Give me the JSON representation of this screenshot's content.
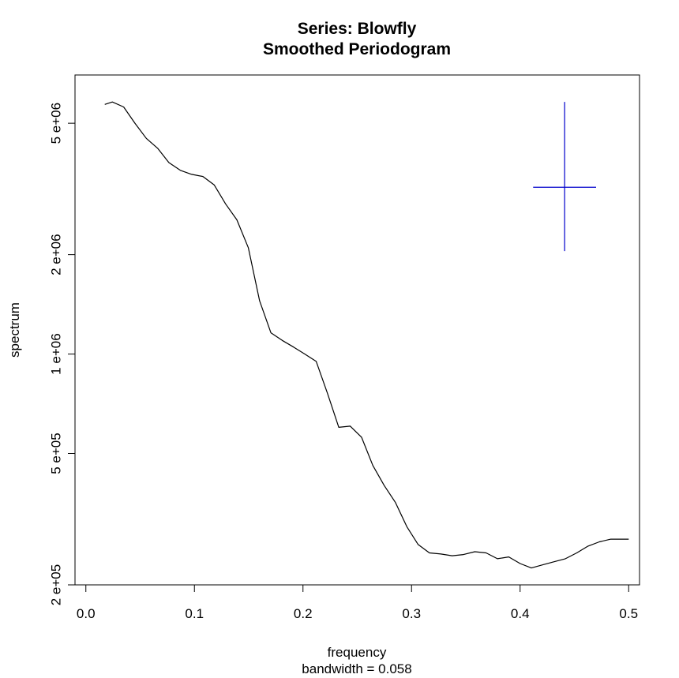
{
  "chart_data": {
    "type": "line",
    "title": "Series: Blowfly",
    "subtitle": "Smoothed Periodogram",
    "xlabel": "frequency",
    "xlabel_sub": "bandwidth = 0.058",
    "ylabel": "spectrum",
    "xlim": [
      -0.01,
      0.51
    ],
    "ylim": [
      200000,
      7000000
    ],
    "yscale": "log",
    "x_ticks": [
      {
        "value": 0.0,
        "label": "0.0"
      },
      {
        "value": 0.1,
        "label": "0.1"
      },
      {
        "value": 0.2,
        "label": "0.2"
      },
      {
        "value": 0.3,
        "label": "0.3"
      },
      {
        "value": 0.4,
        "label": "0.4"
      },
      {
        "value": 0.5,
        "label": "0.5"
      }
    ],
    "y_ticks": [
      {
        "value": 200000,
        "label": "2 e+05"
      },
      {
        "value": 500000,
        "label": "5 e+05"
      },
      {
        "value": 1000000,
        "label": "1 e+06"
      },
      {
        "value": 2000000,
        "label": "2 e+06"
      },
      {
        "value": 5000000,
        "label": "5 e+06"
      }
    ],
    "series": [
      {
        "color": "#000000",
        "x": [
          0.0174,
          0.0244,
          0.0348,
          0.0452,
          0.0557,
          0.0661,
          0.0765,
          0.087,
          0.0974,
          0.1078,
          0.1183,
          0.1287,
          0.1391,
          0.1496,
          0.16,
          0.1704,
          0.1809,
          0.1913,
          0.2017,
          0.2122,
          0.2226,
          0.233,
          0.2435,
          0.2539,
          0.2643,
          0.2748,
          0.2852,
          0.2957,
          0.3061,
          0.3165,
          0.327,
          0.3374,
          0.3478,
          0.3583,
          0.3687,
          0.3791,
          0.3896,
          0.4,
          0.4104,
          0.4209,
          0.4313,
          0.4417,
          0.4522,
          0.4626,
          0.473,
          0.4835,
          0.4939,
          0.5
        ],
        "y": [
          5700000,
          5800000,
          5600000,
          5000000,
          4500000,
          4200000,
          3800000,
          3600000,
          3500000,
          3450000,
          3250000,
          2850000,
          2550000,
          2100000,
          1450000,
          1160000,
          1100000,
          1050000,
          1000000,
          950000,
          760000,
          600000,
          605000,
          560000,
          460000,
          400000,
          355000,
          300000,
          265000,
          250000,
          248000,
          245000,
          247000,
          252000,
          250000,
          240000,
          243000,
          232000,
          225000,
          230000,
          235000,
          240000,
          250000,
          262000,
          270000,
          275000,
          275000,
          275000
        ]
      }
    ],
    "ci_bar": {
      "color": "#0000cc",
      "x": 0.441,
      "x_half_width": 0.029,
      "y_low": 2050000,
      "y_center": 3200000,
      "y_high": 5800000
    }
  }
}
